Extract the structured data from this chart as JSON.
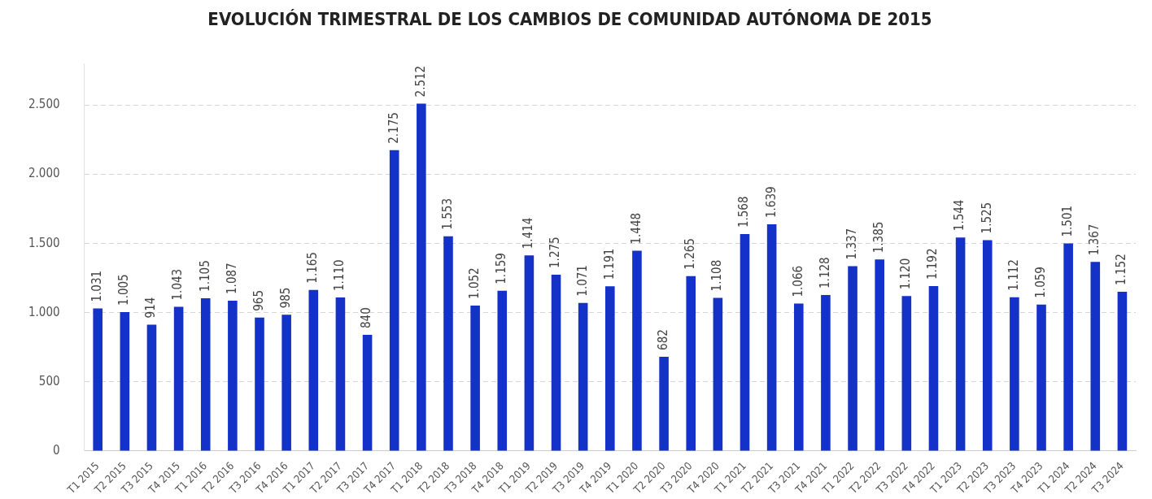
{
  "chart_data": {
    "type": "bar",
    "title": "EVOLUCIÓN TRIMESTRAL DE LOS CAMBIOS DE COMUNIDAD AUTÓNOMA DE 2015",
    "categories": [
      "T1 2015",
      "T2 2015",
      "T3 2015",
      "T4 2015",
      "T1 2016",
      "T2 2016",
      "T3 2016",
      "T4 2016",
      "T1 2017",
      "T2 2017",
      "T3 2017",
      "T4 2017",
      "T1 2018",
      "T2 2018",
      "T3 2018",
      "T4 2018",
      "T1 2019",
      "T2 2019",
      "T3 2019",
      "T4 2019",
      "T1 2020",
      "T2 2020",
      "T3 2020",
      "T4 2020",
      "T1 2021",
      "T2 2021",
      "T3 2021",
      "T4 2021",
      "T1 2022",
      "T2 2022",
      "T3 2022",
      "T4 2022",
      "T1 2023",
      "T2 2023",
      "T3 2023",
      "T4 2023",
      "T1 2024",
      "T2 2024",
      "T3 2024"
    ],
    "values": [
      1031,
      1005,
      914,
      1043,
      1105,
      1087,
      965,
      985,
      1165,
      1110,
      840,
      2175,
      2512,
      1553,
      1052,
      1159,
      1414,
      1275,
      1071,
      1191,
      1448,
      682,
      1265,
      1108,
      1568,
      1639,
      1066,
      1128,
      1337,
      1385,
      1120,
      1192,
      1544,
      1525,
      1112,
      1059,
      1501,
      1367,
      1152
    ],
    "color": "#1432c8",
    "value_labels": [
      "1.031",
      "1.005",
      "914",
      "1.043",
      "1.105",
      "1.087",
      "965",
      "985",
      "1.165",
      "1.110",
      "840",
      "2.175",
      "2.512",
      "1.553",
      "1.052",
      "1.159",
      "1.414",
      "1.275",
      "1.071",
      "1.191",
      "1.448",
      "682",
      "1.265",
      "1.108",
      "1.568",
      "1.639",
      "1.066",
      "1.128",
      "1.337",
      "1.385",
      "1.120",
      "1.192",
      "1.544",
      "1.525",
      "1.112",
      "1.059",
      "1.501",
      "1.367",
      "1.152"
    ],
    "ylim": [
      0,
      2800
    ],
    "yticks": [
      0,
      500,
      {
        "value": 1000,
        "label": "1.000"
      },
      {
        "value": 1500,
        "label": "1.500"
      },
      {
        "value": 2000,
        "label": "2.000"
      },
      {
        "value": 2500,
        "label": "2.500"
      }
    ],
    "grid": "y",
    "legend": false
  }
}
